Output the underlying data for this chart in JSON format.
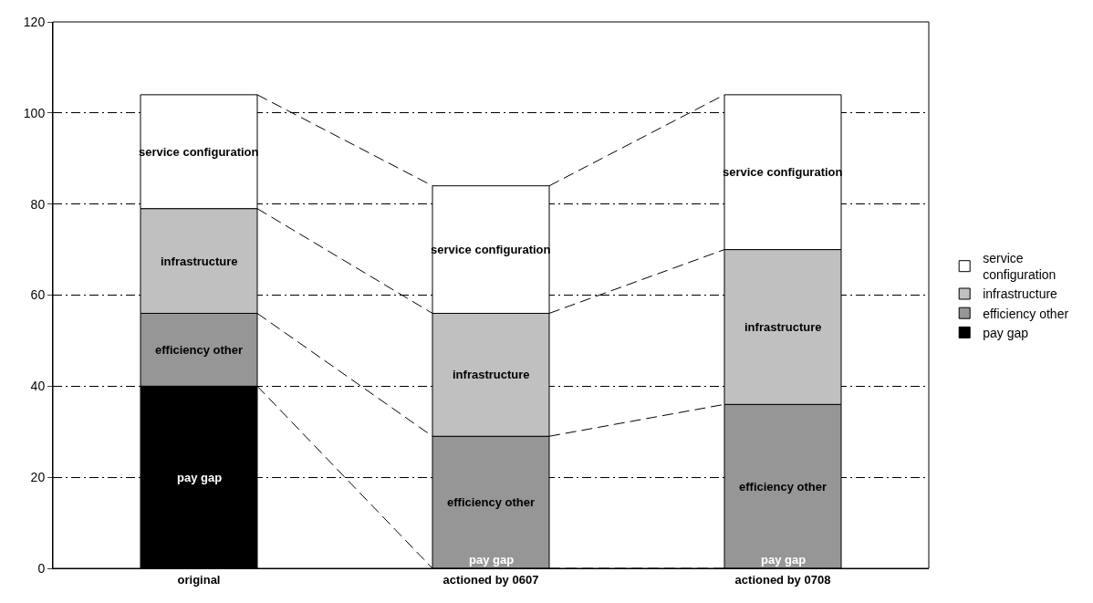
{
  "chart_data": {
    "type": "bar",
    "stacked": true,
    "categories": [
      "original",
      "actioned by 0607",
      "actioned by 0708"
    ],
    "series": [
      {
        "name": "pay gap",
        "color": "#000000",
        "values": [
          40,
          0,
          0
        ]
      },
      {
        "name": "efficiency other",
        "color": "#969696",
        "values": [
          16,
          29,
          36
        ]
      },
      {
        "name": "infrastructure",
        "color": "#c0c0c0",
        "values": [
          23,
          27,
          34
        ]
      },
      {
        "name": "service configuration",
        "color": "#ffffff",
        "values": [
          25,
          28,
          34
        ]
      }
    ],
    "ylim": [
      0,
      120
    ],
    "yticks": [
      0,
      20,
      40,
      60,
      80,
      100,
      120
    ],
    "grid": "y",
    "legend": "right"
  }
}
